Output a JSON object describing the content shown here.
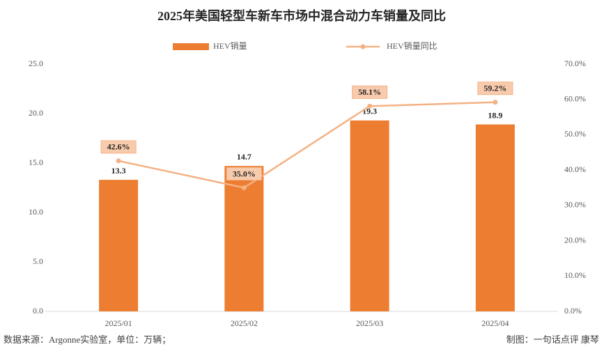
{
  "chart_data": {
    "type": "bar",
    "title": "2025年美国轻型车新车市场中混合动力车销量及同比",
    "categories": [
      "2025/01",
      "2025/02",
      "2025/03",
      "2025/04"
    ],
    "series": [
      {
        "name": "HEV销量",
        "type": "bar",
        "color": "#ed7d31",
        "values": [
          13.3,
          14.7,
          19.3,
          18.9
        ]
      },
      {
        "name": "HEV销量同比",
        "type": "line",
        "axis": "y2",
        "color": "#f4b183",
        "values": [
          42.6,
          35.0,
          58.1,
          59.2
        ],
        "value_labels": [
          "42.6%",
          "35.0%",
          "58.1%",
          "59.2%"
        ]
      }
    ],
    "ylim": [
      0,
      25
    ],
    "yticks": [
      {
        "value": 0,
        "label": "0.0"
      },
      {
        "value": 5,
        "label": "5.0"
      },
      {
        "value": 10,
        "label": "10.0"
      },
      {
        "value": 15,
        "label": "15.0"
      },
      {
        "value": 20,
        "label": "20.0"
      },
      {
        "value": 25,
        "label": "25.0"
      }
    ],
    "y2lim": [
      0,
      70
    ],
    "y2ticks": [
      {
        "value": 0,
        "label": "0.0%"
      },
      {
        "value": 10,
        "label": "10.0%"
      },
      {
        "value": 20,
        "label": "20.0%"
      },
      {
        "value": 30,
        "label": "30.0%"
      },
      {
        "value": 40,
        "label": "40.0%"
      },
      {
        "value": 50,
        "label": "50.0%"
      },
      {
        "value": 60,
        "label": "60.0%"
      },
      {
        "value": 70,
        "label": "70.0%"
      }
    ],
    "grid": false,
    "legend": "top",
    "source": "数据来源：Argonne实验室，单位：万辆；",
    "credit": "制图：一句话点评  康琴"
  }
}
